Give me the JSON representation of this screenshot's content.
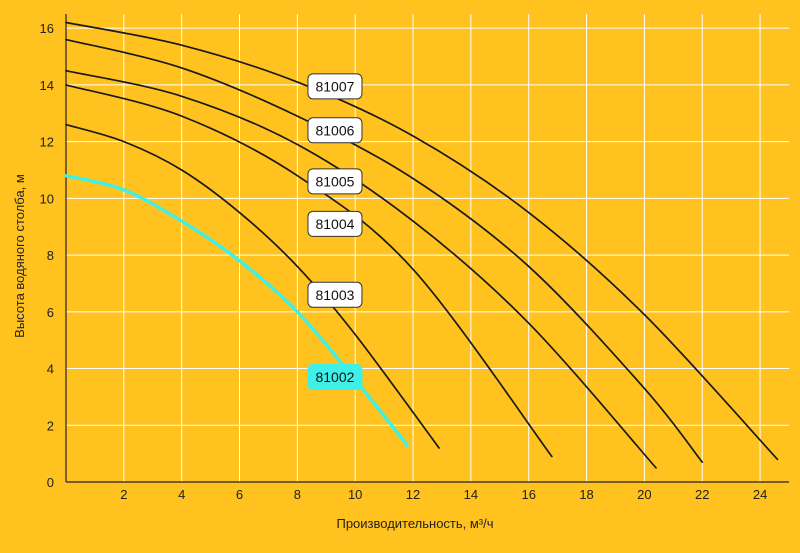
{
  "chart_data": {
    "type": "line",
    "title": "",
    "xlabel": "Производительность, м³/ч",
    "ylabel": "Высота водяного столба, м",
    "xlim": [
      0,
      25
    ],
    "ylim": [
      0,
      16.5
    ],
    "x_ticks": [
      2,
      4,
      6,
      8,
      10,
      12,
      14,
      16,
      18,
      20,
      22,
      24
    ],
    "y_ticks": [
      0,
      2,
      4,
      6,
      8,
      10,
      12,
      14,
      16
    ],
    "grid": true,
    "legend": "inline-labels",
    "series": [
      {
        "name": "81007",
        "color": "#1a1a1a",
        "x": [
          0,
          4,
          8,
          12,
          16,
          20,
          24.6
        ],
        "y": [
          16.2,
          15.4,
          14.1,
          12.2,
          9.5,
          5.9,
          0.8
        ],
        "label_at": [
          9.3,
          13.95
        ]
      },
      {
        "name": "81006",
        "color": "#1a1a1a",
        "x": [
          0,
          4,
          8,
          12,
          16,
          20,
          22
        ],
        "y": [
          15.6,
          14.6,
          12.9,
          10.7,
          7.6,
          3.3,
          0.7
        ],
        "label_at": [
          9.3,
          12.4
        ]
      },
      {
        "name": "81005",
        "color": "#1a1a1a",
        "x": [
          0,
          4,
          8,
          12,
          16,
          20.4
        ],
        "y": [
          14.5,
          13.6,
          11.9,
          9.2,
          5.6,
          0.5
        ],
        "label_at": [
          9.3,
          10.6
        ]
      },
      {
        "name": "81004",
        "color": "#1a1a1a",
        "x": [
          0,
          4,
          8,
          12,
          16.8
        ],
        "y": [
          14.0,
          12.9,
          10.8,
          7.5,
          0.9
        ],
        "label_at": [
          9.3,
          9.1
        ]
      },
      {
        "name": "81003",
        "color": "#1a1a1a",
        "x": [
          0,
          2,
          4,
          6,
          8,
          10,
          12.9
        ],
        "y": [
          12.6,
          12.0,
          11.0,
          9.5,
          7.6,
          5.2,
          1.2
        ],
        "label_at": [
          9.3,
          6.6
        ]
      },
      {
        "name": "81002",
        "color": "#3ff0e8",
        "x": [
          0,
          2,
          4,
          6,
          8,
          10,
          11.8
        ],
        "y": [
          10.8,
          10.3,
          9.2,
          7.8,
          6.0,
          3.6,
          1.3
        ],
        "label_at": [
          9.3,
          3.7
        ]
      }
    ]
  }
}
